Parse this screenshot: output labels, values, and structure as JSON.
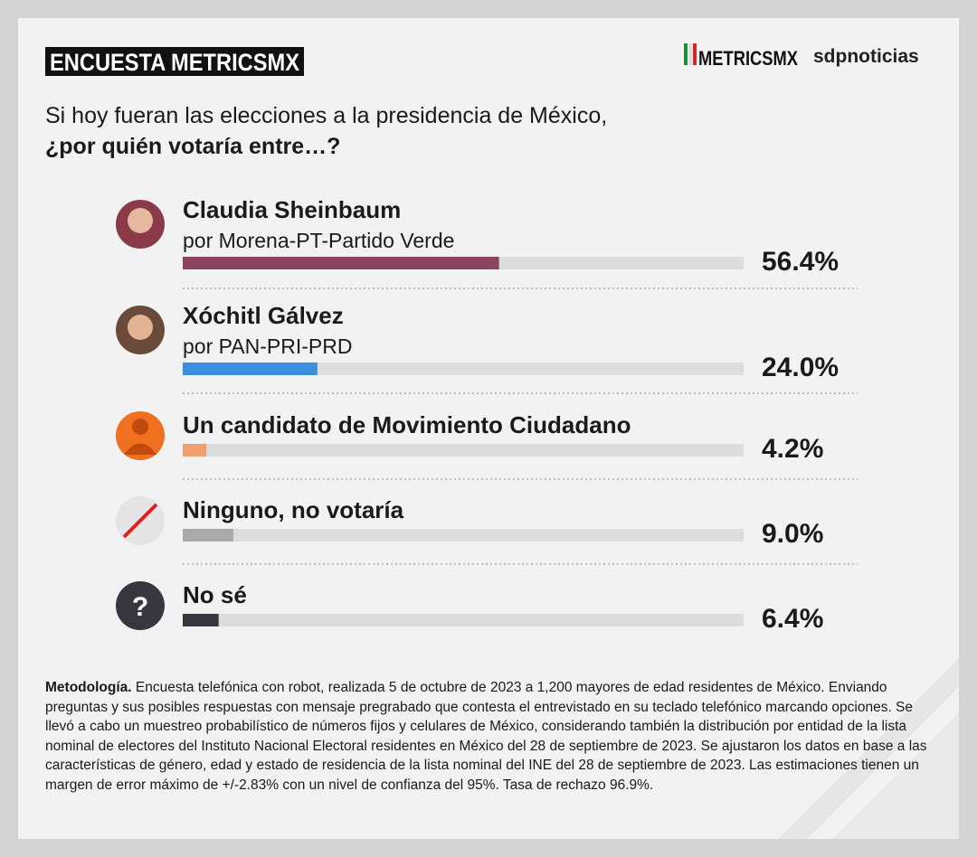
{
  "header": {
    "badge": "ENCUESTA METRICSMX",
    "logo_left": "METRICSMX",
    "logo_right": "sdpnoticias"
  },
  "chart_data": {
    "type": "hbar",
    "title": "Si hoy fueran las elecciones a la presidencia de México,",
    "subtitle": "¿por quién votaría entre…?",
    "categories": [
      "Claudia Sheinbaum",
      "Xóchitl Gálvez",
      "Un candidato de Movimiento Ciudadano",
      "Ninguno, no votaría",
      "No sé"
    ],
    "sublabels": [
      "por Morena-PT-Partido Verde",
      "por PAN-PRI-PRD",
      null,
      null,
      null
    ],
    "values": [
      56.4,
      24.0,
      4.2,
      9.0,
      6.4
    ],
    "value_labels": [
      "56.4%",
      "24.0%",
      "4.2%",
      "9.0%",
      "6.4%"
    ],
    "colors": [
      "#8b4560",
      "#3b8fdc",
      "#f0a070",
      "#a9a9ab",
      "#3a3640"
    ],
    "xlim": [
      0,
      100
    ]
  },
  "footer": {
    "methodology_title": "Metodología.",
    "methodology_text": "Encuesta telefónica con robot, realizada 5 de octubre de 2023 a 1,200 mayores de edad residentes de México. Enviando preguntas y sus posibles respuestas con mensaje pregrabado que contesta el entrevistado en su teclado telefónico marcando opciones. Se llevó a cabo un muestreo probabilístico de números fijos y celulares de México, considerando también la distribución por entidad de la lista nominal de electores del Instituto Nacional Electoral residentes en México del 28 de septiembre de 2023. Se ajustaron los datos en base a las características de género, edad y estado de residencia de la lista nominal del INE del 28 de septiembre de 2023. Las estimaciones tienen un margen de error máximo de +/-2.83% con un nivel de confianza del 95%. Tasa de rechazo 96.9%."
  }
}
